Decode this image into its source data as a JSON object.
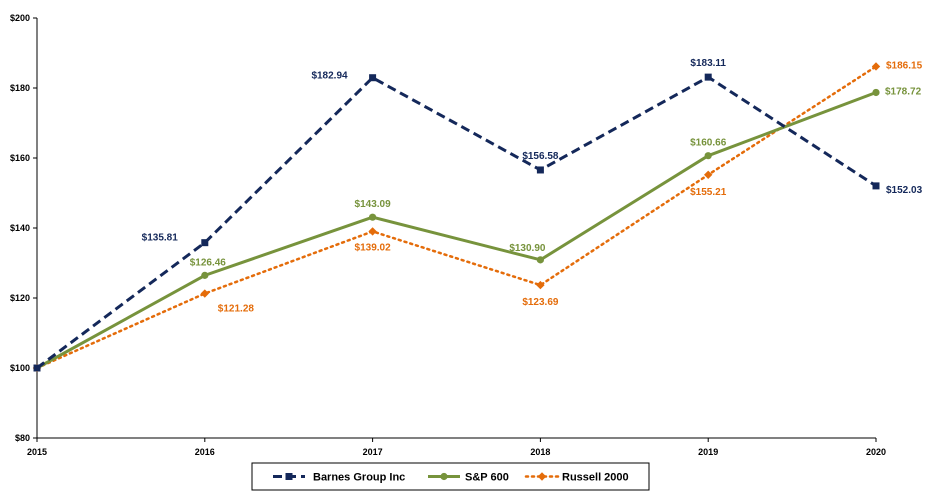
{
  "chart_data": {
    "type": "line",
    "title": "",
    "xlabel": "",
    "ylabel": "",
    "x": [
      "2015",
      "2016",
      "2017",
      "2018",
      "2019",
      "2020"
    ],
    "ylim": [
      80,
      200
    ],
    "ytick_values": [
      80,
      100,
      120,
      140,
      160,
      180,
      200
    ],
    "yticks": [
      "$80",
      "$100",
      "$120",
      "$140",
      "$160",
      "$180",
      "$200"
    ],
    "grid": false,
    "legend_position": "bottom-center",
    "series": [
      {
        "key": "barnes",
        "name": "Barnes Group Inc",
        "values": [
          100,
          135.81,
          182.94,
          156.58,
          183.11,
          152.03
        ],
        "labels": [
          "",
          "$135.81",
          "$182.94",
          "$156.58",
          "$183.11",
          "$152.03"
        ],
        "color": "#14285a",
        "style": "dashed",
        "marker": "square"
      },
      {
        "key": "sp600",
        "name": "S&P 600",
        "values": [
          100,
          126.46,
          143.09,
          130.9,
          160.66,
          178.72
        ],
        "labels": [
          "",
          "$126.46",
          "$143.09",
          "$130.90",
          "$160.66",
          "$178.72"
        ],
        "color": "#77933c",
        "style": "solid",
        "marker": "circle"
      },
      {
        "key": "russell",
        "name": "Russell 2000",
        "values": [
          100,
          121.28,
          139.02,
          123.69,
          155.21,
          186.15
        ],
        "labels": [
          "",
          "$121.28",
          "$139.02",
          "$123.69",
          "$155.21",
          "$186.15"
        ],
        "color": "#e46c0a",
        "style": "dotted",
        "marker": "diamond"
      }
    ]
  }
}
